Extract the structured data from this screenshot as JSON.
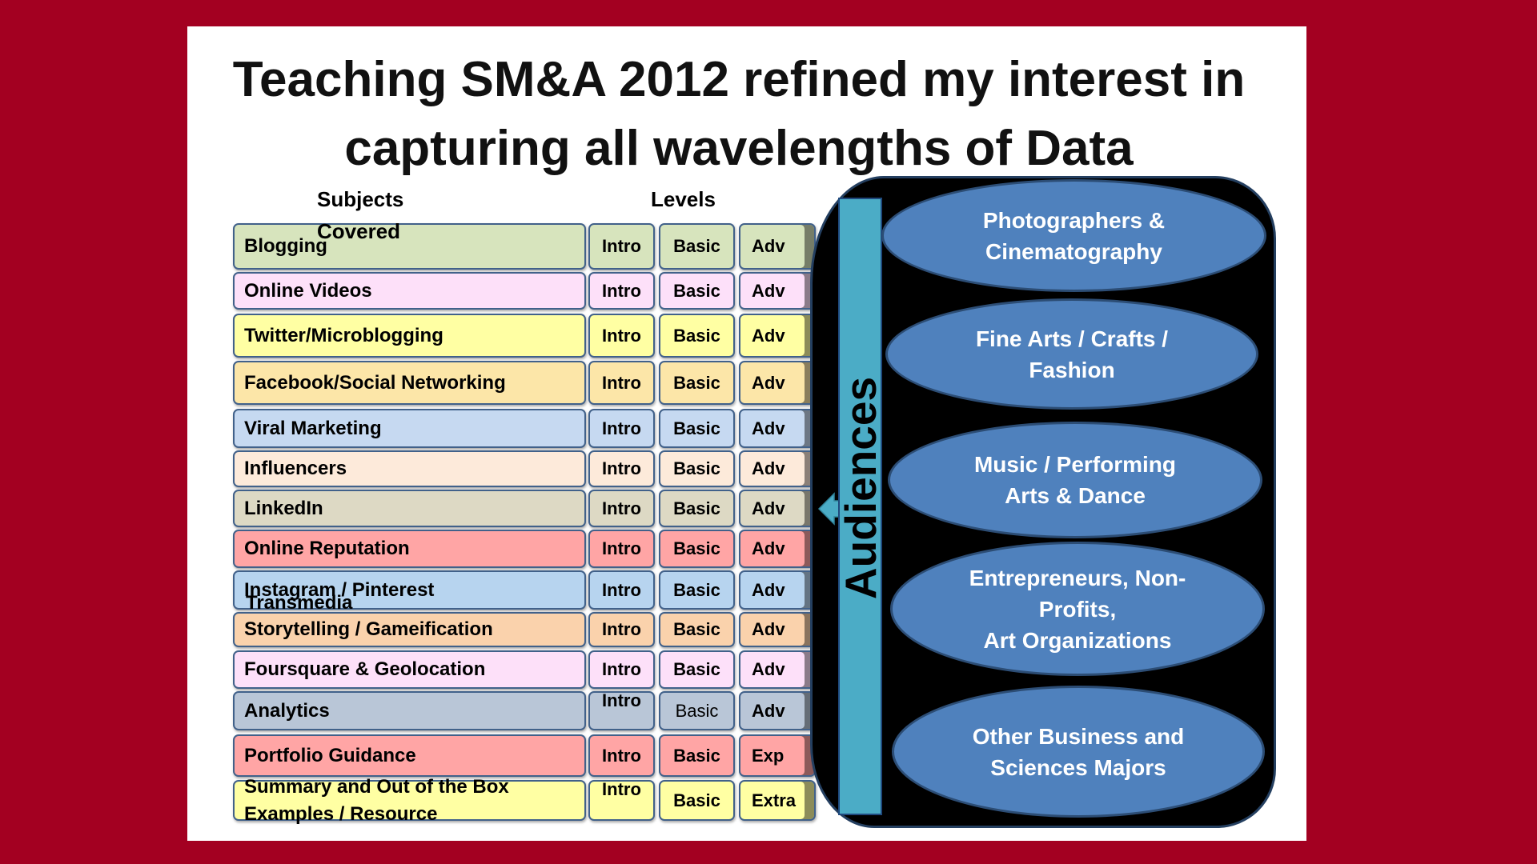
{
  "colors": {
    "page_background": "#A30021",
    "slide_background": "#FFFFFF",
    "audiences_panel": "#000000",
    "audiences_bar": "#4BACC6",
    "audience_ellipse": "#4F81BD",
    "audience_text": "#FFFFFF"
  },
  "title": {
    "line1": "Teaching SM&A 2012 refined my interest in",
    "line2": "capturing all wavelengths of Data"
  },
  "headers": {
    "subjects": "Subjects",
    "covered": "Covered",
    "levels": "Levels"
  },
  "rows": [
    {
      "subject": "Blogging",
      "intro": "Intro",
      "basic": "Basic",
      "adv": "Adv",
      "color": "#D7E4BD"
    },
    {
      "subject": "Online Videos",
      "intro": "Intro",
      "basic": "Basic",
      "adv": "Adv",
      "color": "#FDE0F9"
    },
    {
      "subject": "Twitter/Microblogging",
      "intro": "Intro",
      "basic": "Basic",
      "adv": "Adv",
      "color": "#FFFFA3"
    },
    {
      "subject": "Facebook/Social Networking",
      "intro": "Intro",
      "basic": "Basic",
      "adv": "Adv",
      "color": "#FCE6A8"
    },
    {
      "subject": "Viral Marketing",
      "intro": "Intro",
      "basic": "Basic",
      "adv": "Adv",
      "color": "#C6D9F1"
    },
    {
      "subject": "Influencers",
      "intro": "Intro",
      "basic": "Basic",
      "adv": "Adv",
      "color": "#FDEADA"
    },
    {
      "subject": "LinkedIn",
      "intro": "Intro",
      "basic": "Basic",
      "adv": "Adv",
      "color": "#DDD9C4"
    },
    {
      "subject": "Online Reputation",
      "intro": "Intro",
      "basic": "Basic",
      "adv": "Adv",
      "color": "#FFA5A5"
    },
    {
      "subject": "Instagram / Pinterest",
      "intro": "Intro",
      "basic": "Basic",
      "adv": "Adv",
      "color": "#B7D4EF"
    },
    {
      "subject": "Storytelling / Gameification",
      "intro": "Intro",
      "basic": "Basic",
      "adv": "Adv",
      "color": "#FAD2AC"
    },
    {
      "subject": "Foursquare & Geolocation",
      "intro": "Intro",
      "basic": "Basic",
      "adv": "Adv",
      "color": "#FDE0F9"
    },
    {
      "subject": "Analytics",
      "intro": "Intro",
      "basic": "Basic",
      "adv": "Adv",
      "color": "#B9C6D7"
    },
    {
      "subject": "Portfolio Guidance",
      "intro": "Intro",
      "basic": "Basic",
      "adv": "Exp",
      "color": "#FFA5A5"
    },
    {
      "subject": "Summary and Out of the Box",
      "subject_line2": "Examples / Resource",
      "intro": "Intro",
      "basic": "Basic",
      "adv": "Extra",
      "color": "#FFFFA3"
    }
  ],
  "overlay_labels": {
    "transmedia": "Transmedia"
  },
  "audiences": {
    "label": "Audiences",
    "groups": [
      {
        "lines": [
          "Photographers &",
          "Cinematography"
        ]
      },
      {
        "lines": [
          "Fine Arts / Crafts /",
          "Fashion"
        ]
      },
      {
        "lines": [
          "Music / Performing",
          "Arts & Dance"
        ]
      },
      {
        "lines": [
          "Entrepreneurs, Non-",
          "Profits,",
          "Art Organizations"
        ]
      },
      {
        "lines": [
          "Other Business and",
          "Sciences Majors"
        ]
      }
    ]
  }
}
